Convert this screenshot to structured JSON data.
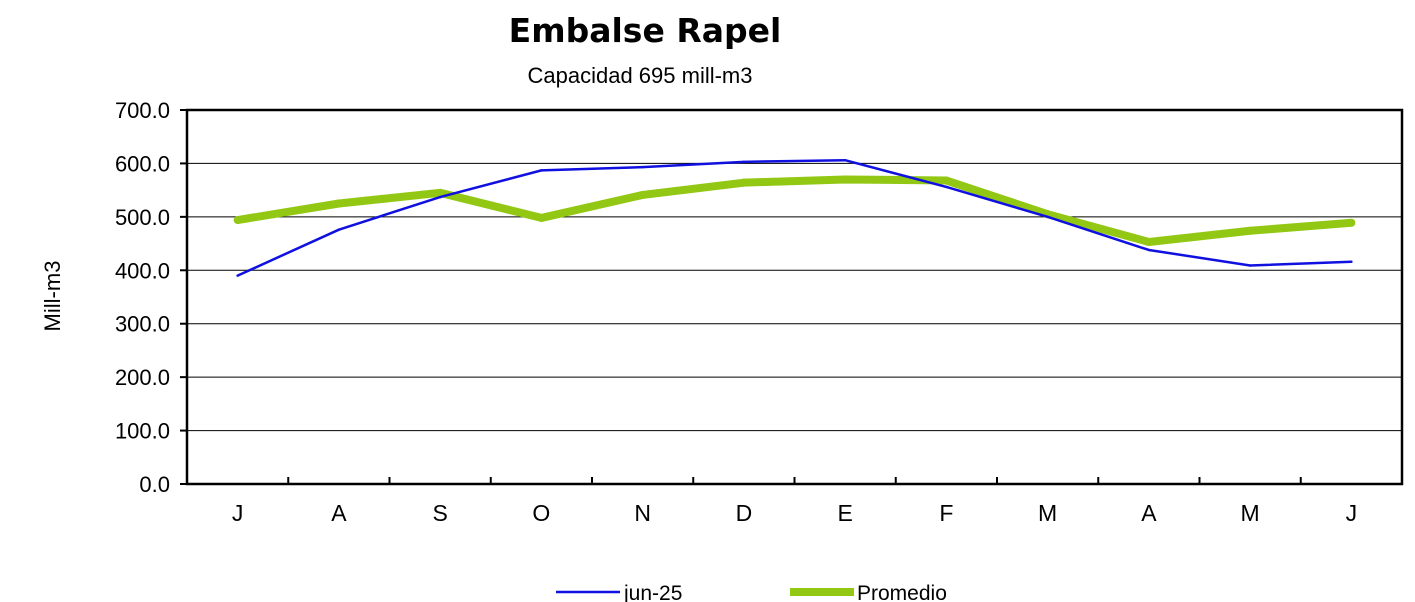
{
  "chart_data": {
    "type": "line",
    "title": "Embalse Rapel",
    "subtitle": "Capacidad 695 mill-m3",
    "xlabel": "",
    "ylabel": "Mill-m3",
    "categories": [
      "J",
      "A",
      "S",
      "O",
      "N",
      "D",
      "E",
      "F",
      "M",
      "A",
      "M",
      "J"
    ],
    "ylim": [
      0,
      700
    ],
    "yticks": [
      "0.0",
      "100.0",
      "200.0",
      "300.0",
      "400.0",
      "500.0",
      "600.0",
      "700.0"
    ],
    "grid": true,
    "legend_position": "bottom",
    "series": [
      {
        "name": "jun-25",
        "color": "#1010e0",
        "values": [
          390,
          476,
          537,
          587,
          593,
          603,
          606,
          556,
          500,
          438,
          409,
          416
        ]
      },
      {
        "name": "Promedio",
        "color": "#92c814",
        "values": [
          494,
          525,
          545,
          498,
          541,
          564,
          570,
          568,
          505,
          453,
          474,
          489
        ]
      }
    ]
  }
}
